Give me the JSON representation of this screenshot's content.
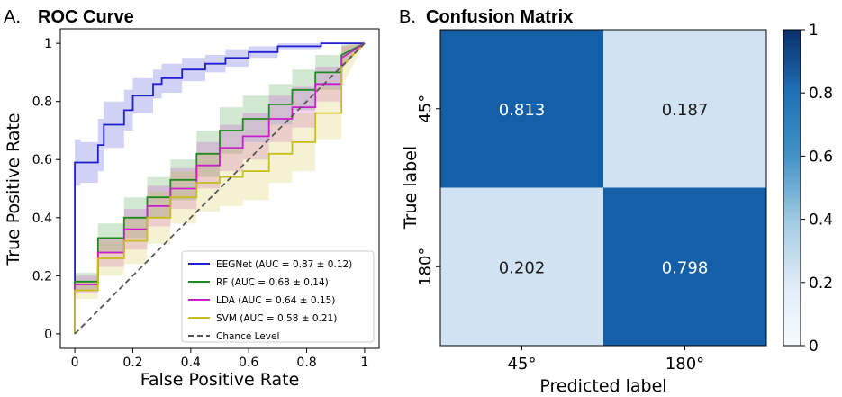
{
  "colors": {
    "eegnet": "#1f1fd0",
    "rf": "#1f8a1f",
    "lda": "#c81fc8",
    "svm": "#c8bd1f",
    "chance": "#555555",
    "cm_dark": "#1460a8",
    "cm_light": "#d1e3f3"
  },
  "chart_data": [
    {
      "type": "line",
      "panel_letter": "A.",
      "title": "ROC Curve",
      "xlabel": "False Positive Rate",
      "ylabel": "True Positive Rate",
      "xlim": [
        -0.05,
        1.05
      ],
      "ylim": [
        -0.05,
        1.05
      ],
      "xticks": [
        "0",
        "0.2",
        "0.4",
        "0.6",
        "0.8",
        "1"
      ],
      "yticks": [
        "0",
        "0.2",
        "0.4",
        "0.6",
        "0.8",
        "1"
      ],
      "legend_position": "lower-right",
      "series": [
        {
          "name": "EEGNet (AUC = 0.87 ± 0.12)",
          "color_key": "eegnet",
          "x": [
            0,
            0,
            0.02,
            0.02,
            0.08,
            0.08,
            0.1,
            0.1,
            0.17,
            0.17,
            0.2,
            0.2,
            0.27,
            0.27,
            0.3,
            0.3,
            0.37,
            0.37,
            0.45,
            0.45,
            0.52,
            0.52,
            0.6,
            0.6,
            0.7,
            0.7,
            0.85,
            0.85,
            1.0
          ],
          "y": [
            0,
            0.59,
            0.59,
            0.59,
            0.59,
            0.65,
            0.65,
            0.72,
            0.72,
            0.77,
            0.77,
            0.82,
            0.82,
            0.86,
            0.86,
            0.88,
            0.88,
            0.91,
            0.91,
            0.93,
            0.93,
            0.95,
            0.95,
            0.97,
            0.97,
            0.99,
            0.99,
            1.0,
            1.0
          ],
          "band": [
            0.08,
            0.08,
            0.08,
            0.07,
            0.07,
            0.09,
            0.09,
            0.08,
            0.08,
            0.07,
            0.07,
            0.06,
            0.06,
            0.05,
            0.05,
            0.05,
            0.05,
            0.04,
            0.04,
            0.03,
            0.03,
            0.03,
            0.03,
            0.02,
            0.02,
            0.01,
            0.01,
            0,
            0
          ]
        },
        {
          "name": "RF (AUC = 0.68 ± 0.14)",
          "color_key": "rf",
          "x": [
            0,
            0,
            0.08,
            0.08,
            0.17,
            0.17,
            0.25,
            0.25,
            0.33,
            0.33,
            0.42,
            0.42,
            0.5,
            0.5,
            0.58,
            0.58,
            0.67,
            0.67,
            0.75,
            0.75,
            0.83,
            0.83,
            0.92,
            0.92,
            1.0
          ],
          "y": [
            0,
            0.18,
            0.18,
            0.33,
            0.33,
            0.4,
            0.4,
            0.47,
            0.47,
            0.53,
            0.53,
            0.62,
            0.62,
            0.7,
            0.7,
            0.74,
            0.74,
            0.79,
            0.79,
            0.84,
            0.84,
            0.9,
            0.9,
            0.96,
            1.0
          ],
          "band": [
            0.03,
            0.03,
            0.03,
            0.05,
            0.05,
            0.07,
            0.07,
            0.07,
            0.07,
            0.07,
            0.07,
            0.08,
            0.08,
            0.08,
            0.08,
            0.08,
            0.08,
            0.07,
            0.07,
            0.07,
            0.07,
            0.06,
            0.06,
            0.04,
            0
          ]
        },
        {
          "name": "LDA (AUC = 0.64 ± 0.15)",
          "color_key": "lda",
          "x": [
            0,
            0,
            0.08,
            0.08,
            0.17,
            0.17,
            0.25,
            0.25,
            0.33,
            0.33,
            0.42,
            0.42,
            0.5,
            0.5,
            0.58,
            0.58,
            0.67,
            0.67,
            0.75,
            0.75,
            0.83,
            0.83,
            0.92,
            0.92,
            1.0
          ],
          "y": [
            0,
            0.17,
            0.17,
            0.28,
            0.28,
            0.36,
            0.36,
            0.44,
            0.44,
            0.5,
            0.5,
            0.58,
            0.58,
            0.64,
            0.64,
            0.68,
            0.68,
            0.74,
            0.74,
            0.78,
            0.78,
            0.86,
            0.86,
            0.95,
            1.0
          ],
          "band": [
            0.03,
            0.03,
            0.03,
            0.05,
            0.05,
            0.07,
            0.07,
            0.07,
            0.07,
            0.07,
            0.07,
            0.08,
            0.08,
            0.08,
            0.08,
            0.08,
            0.08,
            0.08,
            0.08,
            0.07,
            0.07,
            0.06,
            0.06,
            0.04,
            0
          ]
        },
        {
          "name": "SVM (AUC = 0.58 ± 0.21)",
          "color_key": "svm",
          "x": [
            0,
            0,
            0.08,
            0.08,
            0.17,
            0.17,
            0.25,
            0.25,
            0.33,
            0.33,
            0.42,
            0.42,
            0.5,
            0.5,
            0.58,
            0.58,
            0.67,
            0.67,
            0.75,
            0.75,
            0.83,
            0.83,
            0.92,
            0.92,
            1.0
          ],
          "y": [
            0,
            0.15,
            0.15,
            0.26,
            0.26,
            0.32,
            0.32,
            0.4,
            0.4,
            0.47,
            0.47,
            0.52,
            0.52,
            0.54,
            0.54,
            0.56,
            0.56,
            0.62,
            0.62,
            0.66,
            0.66,
            0.76,
            0.76,
            0.92,
            1.0
          ],
          "band": [
            0.03,
            0.03,
            0.03,
            0.06,
            0.06,
            0.08,
            0.08,
            0.09,
            0.09,
            0.09,
            0.09,
            0.1,
            0.1,
            0.1,
            0.1,
            0.1,
            0.1,
            0.1,
            0.1,
            0.1,
            0.1,
            0.09,
            0.09,
            0.07,
            0
          ]
        },
        {
          "name": "Chance Level",
          "color_key": "chance",
          "dashed": true,
          "x": [
            0,
            1
          ],
          "y": [
            0,
            1
          ]
        }
      ]
    },
    {
      "type": "heatmap",
      "panel_letter": "B.",
      "title": "Confusion Matrix",
      "xlabel": "Predicted label",
      "ylabel": "True label",
      "x_categories": [
        "45°",
        "180°"
      ],
      "y_categories": [
        "45°",
        "180°"
      ],
      "values": [
        [
          0.813,
          0.187
        ],
        [
          0.202,
          0.798
        ]
      ],
      "value_labels": [
        [
          "0.813",
          "0.187"
        ],
        [
          "0.202",
          "0.798"
        ]
      ],
      "colorbar": {
        "range": [
          0,
          1
        ],
        "ticks": [
          "0",
          "0.2",
          "0.4",
          "0.6",
          "0.8",
          "1"
        ]
      }
    }
  ]
}
